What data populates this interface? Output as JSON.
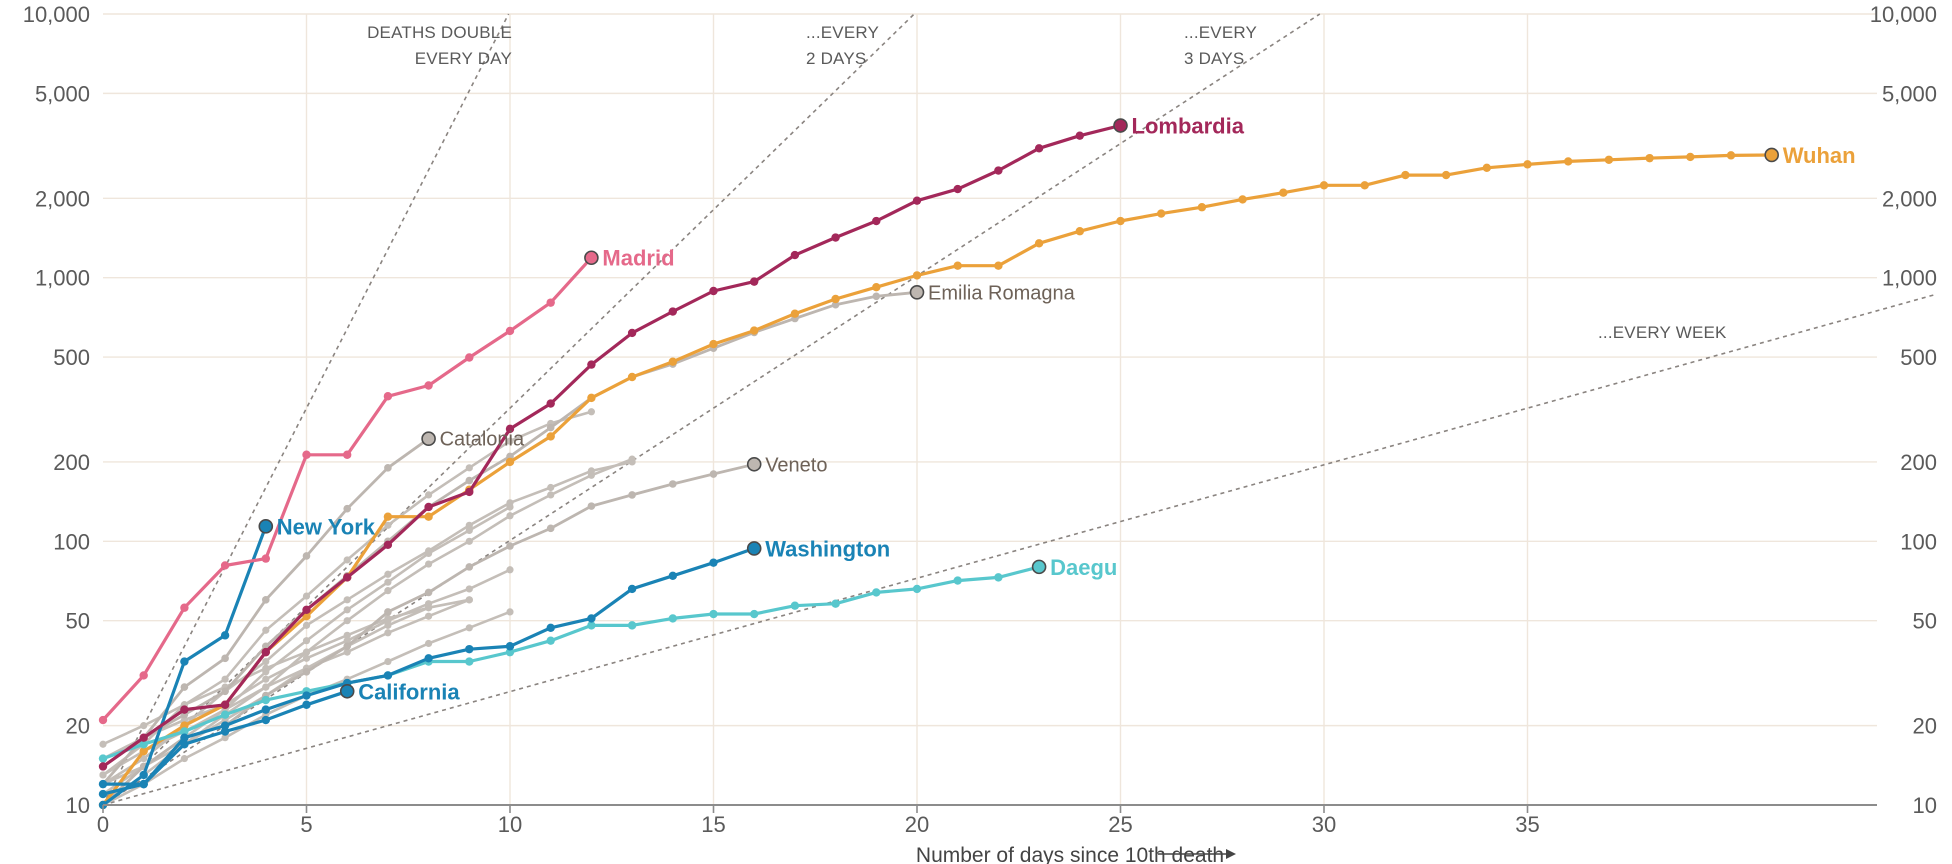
{
  "chart_data": {
    "type": "line",
    "xlabel": "Number of days since 10th death",
    "x_ticks": [
      0,
      5,
      10,
      15,
      20,
      25,
      30,
      35
    ],
    "xlim": [
      0,
      45
    ],
    "y_scale": "log",
    "ylim": [
      10,
      10000
    ],
    "y_ticks": [
      10,
      20,
      50,
      100,
      200,
      500,
      1000,
      2000,
      5000,
      10000
    ],
    "y_tick_labels": [
      "10",
      "20",
      "50",
      "100",
      "200",
      "500",
      "1,000",
      "2,000",
      "5,000",
      "10,000"
    ],
    "grid": "vertical and horizontal, light beige",
    "reference_lines": [
      {
        "label": "DEATHS DOUBLE EVERY DAY",
        "lines": [
          "DEATHS DOUBLE",
          "EVERY DAY"
        ],
        "doubling_days": 1
      },
      {
        "label": "...EVERY 2 DAYS",
        "lines": [
          "...EVERY",
          "2 DAYS"
        ],
        "doubling_days": 2
      },
      {
        "label": "...EVERY 3 DAYS",
        "lines": [
          "...EVERY",
          "3 DAYS"
        ],
        "doubling_days": 3
      },
      {
        "label": "...EVERY WEEK",
        "lines": [
          "...EVERY WEEK"
        ],
        "doubling_days": 7
      }
    ],
    "highlighted_series": [
      {
        "name": "Lombardia",
        "color": "#a3285a",
        "values": [
          14,
          18,
          23,
          24,
          38,
          55,
          73,
          97,
          135,
          154,
          267,
          333,
          468,
          617,
          744,
          890,
          966,
          1218,
          1420,
          1640,
          1959,
          2168,
          2549,
          3095,
          3456,
          3776
        ]
      },
      {
        "name": "Wuhan",
        "color": "#eba13a",
        "values": [
          10,
          16,
          20,
          24,
          38,
          52,
          73,
          124,
          124,
          157,
          200,
          250,
          350,
          420,
          480,
          560,
          630,
          730,
          830,
          920,
          1020,
          1110,
          1110,
          1350,
          1500,
          1640,
          1750,
          1850,
          1980,
          2100,
          2240,
          2240,
          2450,
          2450,
          2610,
          2690,
          2760,
          2800,
          2840,
          2870,
          2910,
          2920
        ]
      },
      {
        "name": "Madrid",
        "color": "#e5698a",
        "values": [
          21,
          31,
          56,
          81,
          86,
          213,
          213,
          355,
          390,
          498,
          628,
          804,
          1190
        ]
      },
      {
        "name": "New York",
        "color": "#1a83b5",
        "values": [
          10,
          13,
          35,
          44,
          114
        ]
      },
      {
        "name": "California",
        "color": "#1a83b5",
        "values": [
          11,
          12,
          17,
          19,
          21,
          24,
          27
        ]
      },
      {
        "name": "Washington",
        "color": "#1a83b5",
        "values": [
          12,
          12,
          18,
          20,
          23,
          26,
          29,
          31,
          36,
          39,
          40,
          47,
          51,
          66,
          74,
          83,
          94
        ]
      },
      {
        "name": "Daegu",
        "color": "#58c7cd",
        "values": [
          15,
          17,
          19,
          22,
          25,
          27,
          29,
          31,
          35,
          35,
          38,
          42,
          48,
          48,
          51,
          53,
          53,
          57,
          58,
          64,
          66,
          71,
          73,
          80
        ]
      }
    ],
    "labelled_grey_series": [
      {
        "name": "Emilia Romagna",
        "values": [
          14,
          18,
          22,
          27,
          40,
          55,
          74,
          100,
          135,
          170,
          210,
          270,
          350,
          420,
          470,
          540,
          620,
          700,
          790,
          850,
          880
        ]
      },
      {
        "name": "Catalonia",
        "values": [
          12,
          18,
          28,
          36,
          60,
          88,
          133,
          190,
          245
        ]
      },
      {
        "name": "Veneto",
        "values": [
          10,
          14,
          18,
          20,
          26,
          32,
          40,
          54,
          64,
          80,
          96,
          112,
          136,
          150,
          165,
          180,
          196
        ]
      }
    ],
    "other_grey_series": [
      [
        13,
        17,
        24,
        30,
        46,
        62,
        85,
        115,
        150,
        190,
        240,
        280,
        310
      ],
      [
        10,
        13,
        17,
        22,
        28,
        38,
        50,
        65,
        82,
        100,
        125,
        150,
        178,
        205
      ],
      [
        12,
        15,
        20,
        27,
        35,
        48,
        60,
        75,
        92,
        115,
        140,
        160,
        185,
        200
      ],
      [
        11,
        14,
        18,
        23,
        32,
        42,
        55,
        70,
        90,
        110,
        135
      ],
      [
        15,
        18,
        21,
        24,
        30,
        36,
        42,
        50,
        58,
        66,
        78
      ],
      [
        13,
        16,
        19,
        23,
        28,
        33,
        38,
        45,
        52,
        60
      ],
      [
        10,
        12,
        15,
        18,
        22,
        26,
        30,
        35,
        41,
        47,
        54
      ],
      [
        12,
        14,
        17,
        21,
        26,
        33,
        40,
        48,
        56,
        60
      ],
      [
        17,
        20,
        24,
        28,
        33,
        38,
        44,
        51,
        56
      ]
    ]
  }
}
